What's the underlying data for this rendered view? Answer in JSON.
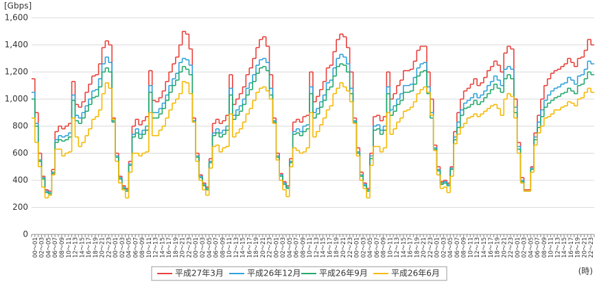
{
  "chart_data": {
    "type": "line",
    "step": true,
    "y_label": "[Gbps]",
    "x_label": "(時)",
    "categories": [
      "00～01",
      null,
      "02～03",
      null,
      "04～05",
      null,
      "06～07",
      null,
      "08～09",
      null,
      "10～11",
      null,
      "12～13",
      null,
      "14～15",
      null,
      "16～17",
      null,
      "18～19",
      null,
      "20～21",
      null,
      "22～23",
      null,
      "00～01",
      null,
      "02～03",
      null,
      "04～05",
      null,
      "06～07",
      null,
      "08～09",
      null,
      "10～11",
      null,
      "12～13",
      null,
      "14～15",
      null,
      "16～17",
      null,
      "18～19",
      null,
      "20～21",
      null,
      "22～23",
      null,
      "00～01",
      null,
      "02～03",
      null,
      "04～05",
      null,
      "06～07",
      null,
      "08～09",
      null,
      "10～11",
      null,
      "12～13",
      null,
      "14～15",
      null,
      "16～17",
      null,
      "18～19",
      null,
      "20～21",
      null,
      "22～23",
      null,
      "00～01",
      null,
      "02～03",
      null,
      "04～05",
      null,
      "06～07",
      null,
      "08～09",
      null,
      "10～11",
      null,
      "12～13",
      null,
      "14～15",
      null,
      "16～17",
      null,
      "18～19",
      null,
      "20～21",
      null,
      "22～23",
      null,
      "00～01",
      null,
      "02～03",
      null,
      "04～05",
      null,
      "06～07",
      null,
      "08～09",
      null,
      "10～11",
      null,
      "12～13",
      null,
      "14～15",
      null,
      "16～17",
      null,
      "18～19",
      null,
      "20～21",
      null,
      "22～23",
      null,
      "00～01",
      null,
      "02～03",
      null,
      "04～05",
      null,
      "06～07",
      null,
      "08～09",
      null,
      "10～11",
      null,
      "12～13",
      null,
      "14～15",
      null,
      "16～17",
      null,
      "18～19",
      null,
      "20～21",
      null,
      "22～23",
      null,
      "00～01",
      null,
      "02～03",
      null,
      "04～05",
      null,
      "06～07",
      null,
      "08～09",
      null,
      "10～11",
      null,
      "12～13",
      null,
      "14～15",
      null,
      "16～17",
      null,
      "18～19",
      null,
      "20～21",
      null,
      "22～23",
      null
    ],
    "series": [
      {
        "name": "平成27年3月",
        "color": "#e8403a",
        "values": [
          1150,
          900,
          600,
          430,
          330,
          320,
          480,
          760,
          800,
          780,
          800,
          820,
          1130,
          960,
          940,
          980,
          1050,
          1110,
          1170,
          1180,
          1260,
          1380,
          1430,
          1400,
          860,
          600,
          430,
          360,
          340,
          540,
          800,
          850,
          810,
          840,
          870,
          1210,
          990,
          980,
          1010,
          1060,
          1130,
          1200,
          1260,
          1310,
          1400,
          1500,
          1480,
          1370,
          860,
          600,
          440,
          380,
          350,
          560,
          820,
          850,
          820,
          840,
          880,
          1180,
          960,
          1000,
          1040,
          1090,
          1180,
          1230,
          1300,
          1380,
          1440,
          1460,
          1390,
          1180,
          860,
          600,
          450,
          390,
          360,
          560,
          830,
          850,
          830,
          870,
          880,
          1200,
          980,
          1020,
          1070,
          1130,
          1230,
          1250,
          1350,
          1440,
          1480,
          1460,
          1380,
          1200,
          860,
          640,
          460,
          380,
          340,
          600,
          870,
          880,
          840,
          870,
          1200,
          1000,
          1040,
          1100,
          1140,
          1210,
          1210,
          1220,
          1280,
          1360,
          1390,
          1390,
          1200,
          1000,
          660,
          500,
          390,
          400,
          380,
          500,
          760,
          900,
          1000,
          1060,
          1080,
          1110,
          1150,
          1100,
          1120,
          1160,
          1210,
          1240,
          1280,
          1250,
          1200,
          1340,
          1390,
          1370,
          1000,
          680,
          420,
          330,
          330,
          500,
          750,
          880,
          1000,
          1100,
          1150,
          1190,
          1210,
          1220,
          1240,
          1260,
          1300,
          1270,
          1240,
          1300,
          1310,
          1360,
          1440,
          1400
        ]
      },
      {
        "name": "平成26年12月",
        "color": "#2ea1dc",
        "values": [
          1050,
          820,
          550,
          420,
          320,
          310,
          460,
          700,
          730,
          720,
          730,
          750,
          1030,
          880,
          860,
          900,
          950,
          1000,
          1060,
          1070,
          1150,
          1260,
          1310,
          1270,
          840,
          580,
          420,
          350,
          330,
          520,
          740,
          780,
          740,
          770,
          800,
          1100,
          900,
          900,
          930,
          970,
          1030,
          1100,
          1150,
          1190,
          1270,
          1300,
          1290,
          1250,
          840,
          580,
          430,
          370,
          340,
          540,
          750,
          780,
          750,
          770,
          800,
          1080,
          880,
          920,
          950,
          1000,
          1080,
          1120,
          1180,
          1250,
          1290,
          1300,
          1270,
          1080,
          840,
          580,
          440,
          380,
          350,
          540,
          760,
          780,
          760,
          800,
          810,
          1090,
          900,
          930,
          980,
          1030,
          1120,
          1140,
          1230,
          1300,
          1330,
          1310,
          1260,
          1080,
          840,
          610,
          440,
          370,
          330,
          580,
          800,
          810,
          770,
          800,
          1090,
          920,
          950,
          1000,
          1040,
          1100,
          1100,
          1110,
          1160,
          1230,
          1260,
          1270,
          1090,
          900,
          640,
          480,
          380,
          390,
          370,
          490,
          720,
          830,
          920,
          970,
          990,
          1010,
          1040,
          1010,
          1030,
          1060,
          1100,
          1130,
          1170,
          1140,
          1100,
          1220,
          1240,
          1220,
          940,
          650,
          400,
          320,
          320,
          490,
          720,
          830,
          920,
          990,
          1030,
          1060,
          1080,
          1090,
          1110,
          1120,
          1160,
          1140,
          1110,
          1170,
          1180,
          1220,
          1280,
          1260
        ]
      },
      {
        "name": "平成26年9月",
        "color": "#22a86b",
        "values": [
          1000,
          800,
          540,
          410,
          310,
          300,
          450,
          680,
          700,
          690,
          700,
          720,
          990,
          840,
          820,
          860,
          910,
          960,
          1010,
          1020,
          1090,
          1200,
          1230,
          1200,
          830,
          570,
          410,
          340,
          320,
          510,
          720,
          750,
          710,
          740,
          770,
          1050,
          860,
          860,
          890,
          930,
          990,
          1050,
          1100,
          1140,
          1200,
          1240,
          1220,
          1180,
          830,
          570,
          420,
          360,
          330,
          530,
          730,
          750,
          720,
          740,
          770,
          1030,
          850,
          880,
          910,
          960,
          1030,
          1070,
          1130,
          1190,
          1230,
          1240,
          1210,
          1030,
          830,
          570,
          430,
          370,
          340,
          530,
          740,
          750,
          730,
          760,
          780,
          1040,
          860,
          890,
          940,
          990,
          1070,
          1090,
          1170,
          1240,
          1260,
          1250,
          1200,
          1040,
          830,
          600,
          430,
          360,
          320,
          560,
          770,
          780,
          740,
          770,
          1040,
          880,
          910,
          960,
          990,
          1050,
          1050,
          1060,
          1110,
          1170,
          1200,
          1210,
          1040,
          860,
          630,
          470,
          370,
          380,
          360,
          480,
          700,
          790,
          880,
          930,
          940,
          960,
          990,
          960,
          980,
          1010,
          1040,
          1070,
          1110,
          1080,
          1050,
          1150,
          1180,
          1150,
          900,
          630,
          390,
          320,
          320,
          480,
          700,
          790,
          870,
          940,
          970,
          990,
          1010,
          1020,
          1040,
          1050,
          1080,
          1060,
          1040,
          1100,
          1110,
          1150,
          1200,
          1180
        ]
      },
      {
        "name": "平成26年6月",
        "color": "#f5b800",
        "values": [
          860,
          680,
          500,
          350,
          270,
          290,
          440,
          630,
          630,
          580,
          600,
          610,
          860,
          720,
          650,
          680,
          730,
          780,
          850,
          870,
          920,
          1040,
          1120,
          1080,
          850,
          540,
          380,
          330,
          270,
          460,
          600,
          600,
          580,
          600,
          610,
          900,
          730,
          730,
          770,
          800,
          860,
          920,
          970,
          1000,
          1040,
          1130,
          1120,
          1040,
          830,
          540,
          400,
          330,
          290,
          490,
          650,
          660,
          610,
          640,
          650,
          890,
          720,
          750,
          780,
          830,
          890,
          930,
          990,
          1050,
          1080,
          1090,
          1060,
          1000,
          820,
          550,
          400,
          330,
          280,
          500,
          640,
          620,
          600,
          610,
          640,
          900,
          720,
          760,
          810,
          860,
          920,
          950,
          1040,
          1080,
          1120,
          1090,
          1060,
          980,
          820,
          580,
          400,
          340,
          270,
          510,
          650,
          650,
          610,
          640,
          900,
          740,
          780,
          830,
          860,
          910,
          920,
          940,
          980,
          1040,
          1070,
          1090,
          1050,
          880,
          620,
          440,
          340,
          350,
          310,
          430,
          670,
          740,
          790,
          820,
          860,
          870,
          890,
          870,
          890,
          910,
          930,
          950,
          960,
          930,
          880,
          1000,
          1040,
          1020,
          860,
          600,
          380,
          320,
          320,
          460,
          660,
          750,
          800,
          860,
          870,
          890,
          920,
          920,
          940,
          950,
          980,
          970,
          950,
          1000,
          1010,
          1050,
          1080,
          1050
        ]
      }
    ],
    "ylim": [
      0,
      1600
    ],
    "yticks": [
      0,
      200,
      400,
      600,
      800,
      {
        "value": 1000,
        "label": "1,000"
      },
      {
        "value": 1200,
        "label": "1,200"
      },
      {
        "value": 1400,
        "label": "1,400"
      },
      {
        "value": 1600,
        "label": "1,600"
      }
    ],
    "grid": true,
    "legend": "bottom"
  }
}
